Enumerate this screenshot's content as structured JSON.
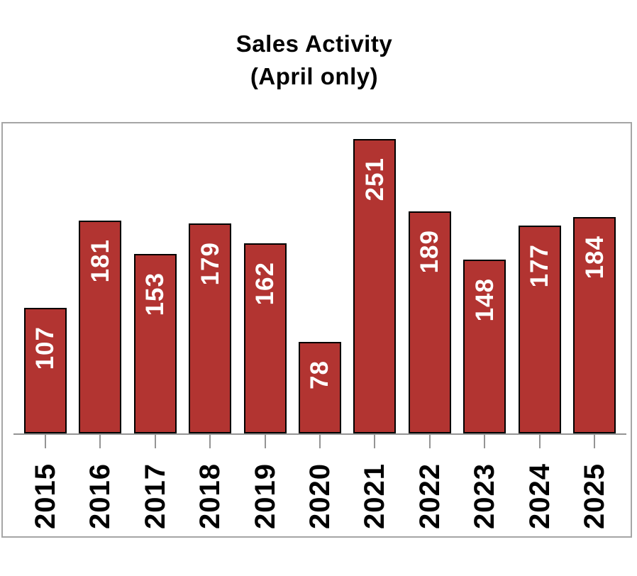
{
  "title": {
    "line1": "Sales Activity",
    "line2": "(April only)"
  },
  "chart_data": {
    "type": "bar",
    "title": "Sales Activity (April only)",
    "categories": [
      "2015",
      "2016",
      "2017",
      "2018",
      "2019",
      "2020",
      "2021",
      "2022",
      "2023",
      "2024",
      "2025"
    ],
    "values": [
      107,
      181,
      153,
      179,
      162,
      78,
      251,
      189,
      148,
      177,
      184
    ],
    "xlabel": "",
    "ylabel": "",
    "ylim": [
      0,
      264
    ],
    "grid": false,
    "legend": false,
    "value_label_position": "inside-top-rotated-bottom-to-top",
    "category_label_rotation": "vertical-bottom-to-top",
    "colors": {
      "background": "#ffffff",
      "bar_fill": "#b23431",
      "bar_border": "#000000",
      "value_label": "#ffffff",
      "axis": "#949494",
      "frame_border": "#a6a6a6",
      "year_label": "#000000",
      "title_text": "#000000"
    }
  }
}
